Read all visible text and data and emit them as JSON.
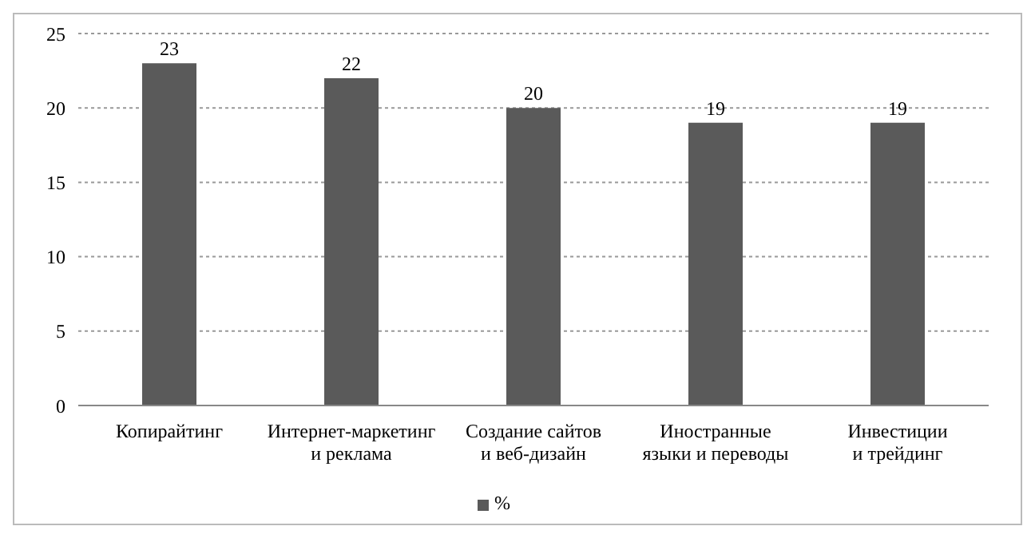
{
  "chart_data": {
    "type": "bar",
    "categories": [
      "Копирайтинг",
      "Интернет-маркетинг\nи реклама",
      "Создание сайтов\nи веб-дизайн",
      "Иностранные\nязыки и переводы",
      "Инвестиции\nи трейдинг"
    ],
    "series": [
      {
        "name": "%",
        "color": "#5a5a5a",
        "values": [
          23,
          22,
          20,
          19,
          19
        ]
      }
    ],
    "ylim": [
      0,
      25
    ],
    "yticks": [
      0,
      5,
      10,
      15,
      20,
      25
    ],
    "grid": "y",
    "legend": "bottom",
    "data_labels": true
  }
}
